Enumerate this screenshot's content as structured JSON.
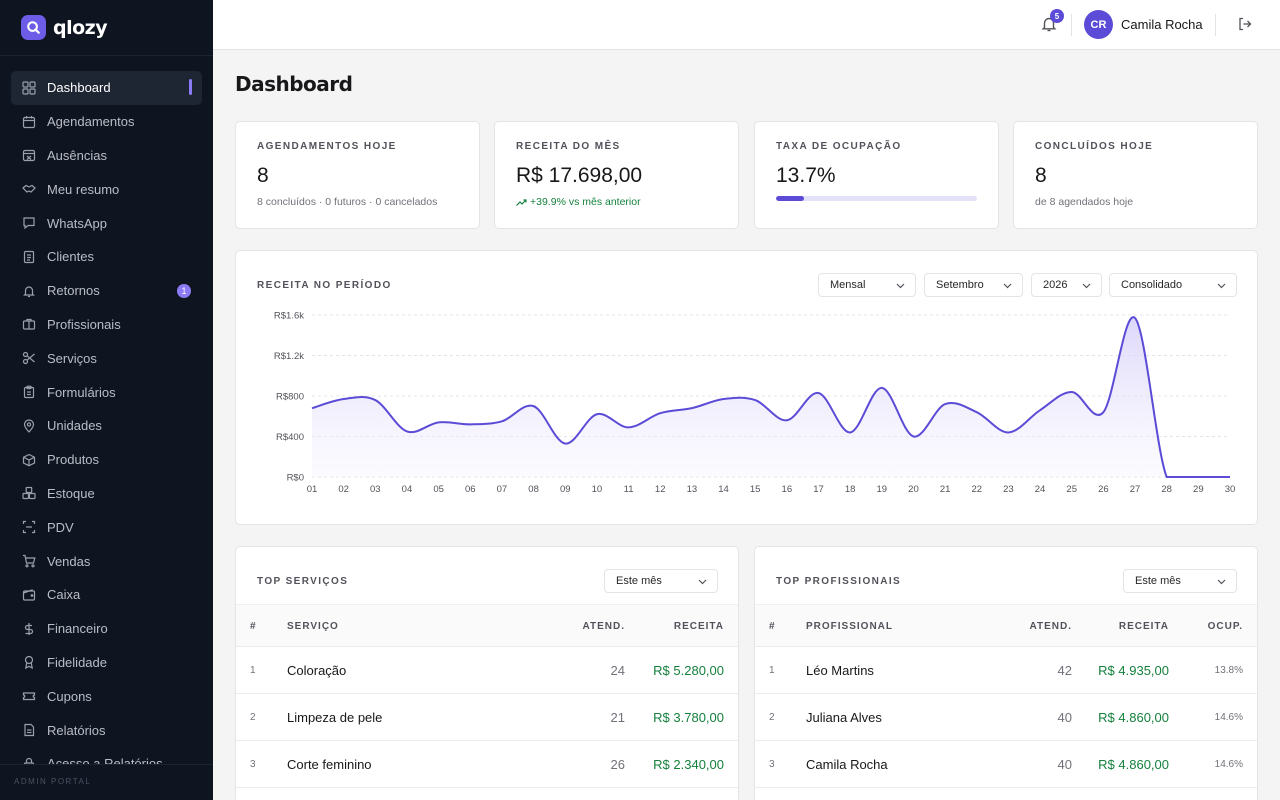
{
  "app": {
    "name": "qlozy",
    "footer": "ADMIN PORTAL"
  },
  "sidebar": {
    "items": [
      {
        "label": "Dashboard",
        "icon": "grid-icon",
        "active": true
      },
      {
        "label": "Agendamentos",
        "icon": "calendar-icon"
      },
      {
        "label": "Ausências",
        "icon": "calendar-off-icon"
      },
      {
        "label": "Meu resumo",
        "icon": "handshake-icon"
      },
      {
        "label": "WhatsApp",
        "icon": "chat-icon"
      },
      {
        "label": "Clientes",
        "icon": "contacts-icon"
      },
      {
        "label": "Retornos",
        "icon": "bell-ring-icon",
        "badge": "1"
      },
      {
        "label": "Profissionais",
        "icon": "briefcase-icon"
      },
      {
        "label": "Serviços",
        "icon": "scissors-icon"
      },
      {
        "label": "Formulários",
        "icon": "clipboard-icon"
      },
      {
        "label": "Unidades",
        "icon": "map-pin-icon"
      },
      {
        "label": "Produtos",
        "icon": "package-icon"
      },
      {
        "label": "Estoque",
        "icon": "boxes-icon"
      },
      {
        "label": "PDV",
        "icon": "scan-icon"
      },
      {
        "label": "Vendas",
        "icon": "cart-icon"
      },
      {
        "label": "Caixa",
        "icon": "wallet-icon"
      },
      {
        "label": "Financeiro",
        "icon": "dollar-icon"
      },
      {
        "label": "Fidelidade",
        "icon": "award-icon"
      },
      {
        "label": "Cupons",
        "icon": "ticket-icon"
      },
      {
        "label": "Relatórios",
        "icon": "report-icon"
      },
      {
        "label": "Acesso a Relatórios",
        "icon": "lock-icon"
      }
    ]
  },
  "header": {
    "notifications": "5",
    "avatar_initials": "CR",
    "user_name": "Camila Rocha"
  },
  "page": {
    "title": "Dashboard"
  },
  "stats": [
    {
      "label": "AGENDAMENTOS HOJE",
      "value": "8",
      "sub": "8 concluídos · 0 futuros · 0 cancelados"
    },
    {
      "label": "RECEITA DO MÊS",
      "value": "R$ 17.698,00",
      "sub": "+39.9% vs mês anterior",
      "trend": "up"
    },
    {
      "label": "TAXA DE OCUPAÇÃO",
      "value": "13.7%",
      "progress": 0.137
    },
    {
      "label": "CONCLUÍDOS HOJE",
      "value": "8",
      "sub": "de 8 agendados hoje"
    }
  ],
  "revenue": {
    "label": "RECEITA NO PERÍODO",
    "filters": {
      "period": "Mensal",
      "month": "Setembro",
      "year": "2026",
      "mode": "Consolidado"
    }
  },
  "chart_data": {
    "type": "area",
    "x": [
      "01",
      "02",
      "03",
      "04",
      "05",
      "06",
      "07",
      "08",
      "09",
      "10",
      "11",
      "12",
      "13",
      "14",
      "15",
      "16",
      "17",
      "18",
      "19",
      "20",
      "21",
      "22",
      "23",
      "24",
      "25",
      "26",
      "27",
      "28",
      "29",
      "30"
    ],
    "series": [
      {
        "values": [
          680,
          770,
          760,
          450,
          540,
          520,
          550,
          700,
          330,
          620,
          490,
          630,
          680,
          770,
          760,
          560,
          830,
          440,
          880,
          400,
          720,
          640,
          440,
          660,
          840,
          640,
          1570,
          0,
          0,
          0
        ]
      }
    ],
    "yticks": [
      "R$0",
      "R$400",
      "R$800",
      "R$1.2k",
      "R$1.6k"
    ],
    "ylim": [
      0,
      1600
    ],
    "grid": true,
    "colors": {
      "line": "#5b4bd6",
      "fill": "#ece9fb"
    }
  },
  "top_services": {
    "label": "TOP SERVIÇOS",
    "filter": "Este mês",
    "columns": [
      "#",
      "SERVIÇO",
      "ATEND.",
      "RECEITA"
    ],
    "rows": [
      {
        "idx": "1",
        "name": "Coloração",
        "count": "24",
        "revenue": "R$ 5.280,00"
      },
      {
        "idx": "2",
        "name": "Limpeza de pele",
        "count": "21",
        "revenue": "R$ 3.780,00"
      },
      {
        "idx": "3",
        "name": "Corte feminino",
        "count": "26",
        "revenue": "R$ 2.340,00"
      }
    ]
  },
  "top_professionals": {
    "label": "TOP PROFISSIONAIS",
    "filter": "Este mês",
    "columns": [
      "#",
      "PROFISSIONAL",
      "ATEND.",
      "RECEITA",
      "OCUP."
    ],
    "rows": [
      {
        "idx": "1",
        "name": "Léo Martins",
        "count": "42",
        "revenue": "R$ 4.935,00",
        "occupancy": "13.8%"
      },
      {
        "idx": "2",
        "name": "Juliana Alves",
        "count": "40",
        "revenue": "R$ 4.860,00",
        "occupancy": "14.6%"
      },
      {
        "idx": "3",
        "name": "Camila Rocha",
        "count": "40",
        "revenue": "R$ 4.860,00",
        "occupancy": "14.6%"
      }
    ]
  }
}
